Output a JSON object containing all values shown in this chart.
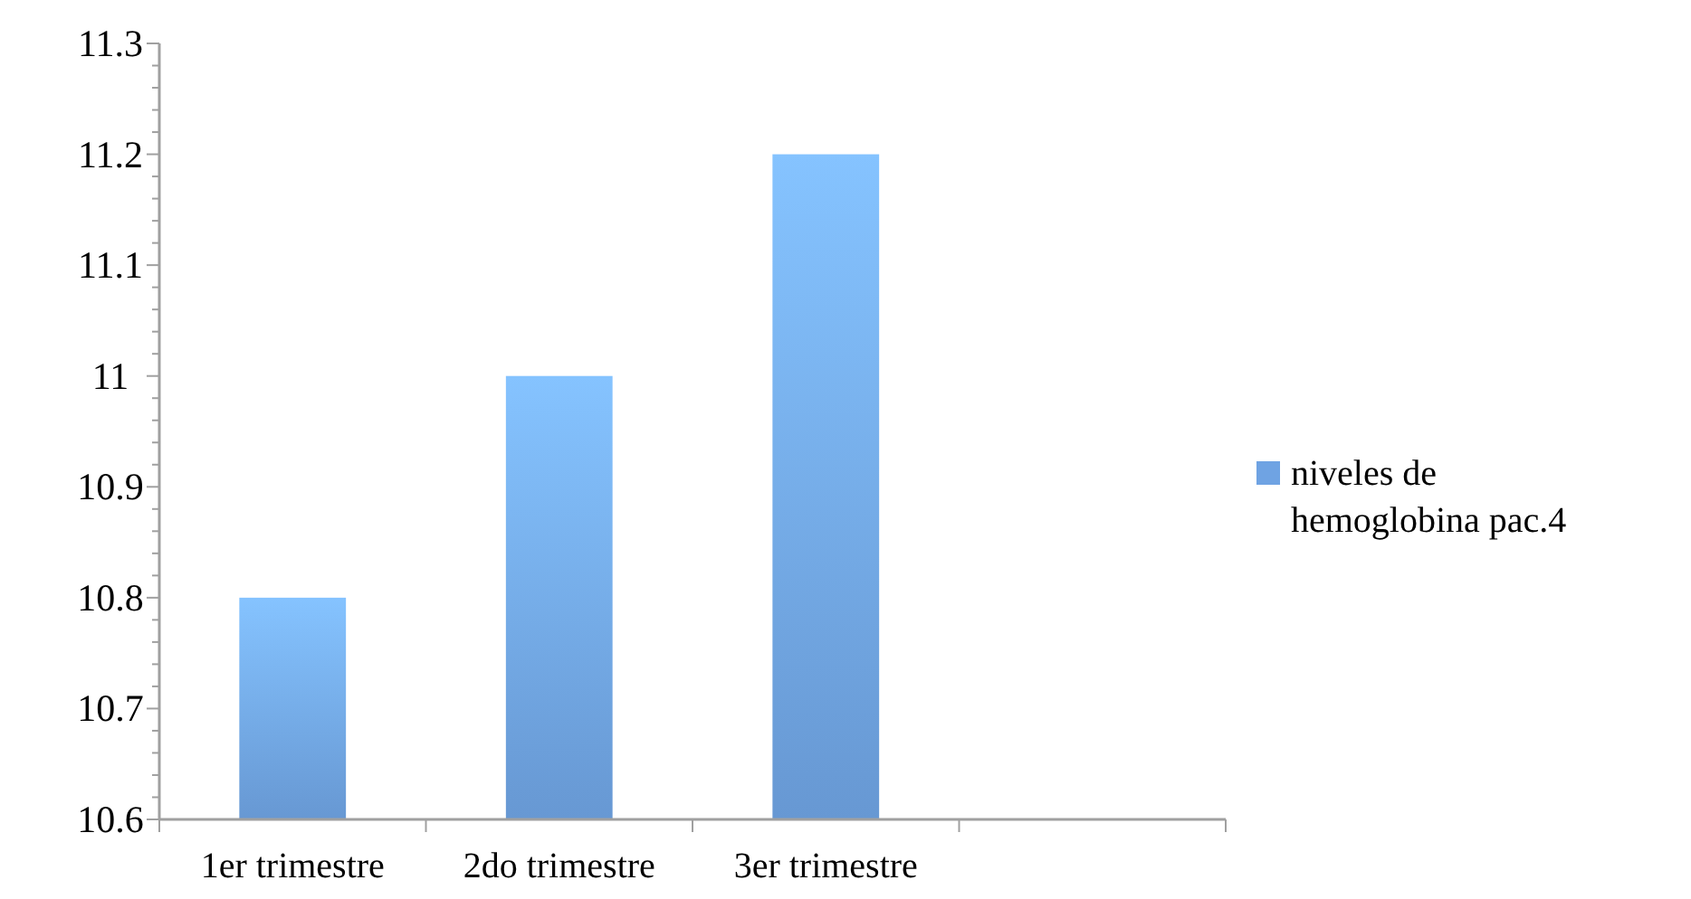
{
  "chart_data": {
    "type": "bar",
    "categories": [
      "1er trimestre",
      "2do trimestre",
      "3er trimestre",
      null
    ],
    "series": [
      {
        "name": "niveles de hemoglobina pac.4",
        "color": "#6fa3e3",
        "values": [
          10.8,
          11.0,
          11.2,
          null
        ]
      }
    ],
    "ylim": [
      10.6,
      11.3
    ],
    "yticks": [
      10.6,
      {
        "value": 10.62,
        "label": null
      },
      {
        "value": 10.64,
        "label": null
      },
      {
        "value": 10.66,
        "label": null
      },
      {
        "value": 10.68,
        "label": null
      },
      10.7,
      {
        "value": 10.72,
        "label": null
      },
      {
        "value": 10.74,
        "label": null
      },
      {
        "value": 10.76,
        "label": null
      },
      {
        "value": 10.78,
        "label": null
      },
      10.8,
      {
        "value": 10.82,
        "label": null
      },
      {
        "value": 10.84,
        "label": null
      },
      {
        "value": 10.86,
        "label": null
      },
      {
        "value": 10.88,
        "label": null
      },
      10.9,
      {
        "value": 10.92,
        "label": null
      },
      {
        "value": 10.94,
        "label": null
      },
      {
        "value": 10.96,
        "label": null
      },
      {
        "value": 10.98,
        "label": null
      },
      {
        "value": 11,
        "label": "11"
      },
      {
        "value": 11.02,
        "label": null
      },
      {
        "value": 11.04,
        "label": null
      },
      {
        "value": 11.06,
        "label": null
      },
      {
        "value": 11.08,
        "label": null
      },
      11.1,
      {
        "value": 11.12,
        "label": null
      },
      {
        "value": 11.14,
        "label": null
      },
      {
        "value": 11.16,
        "label": null
      },
      {
        "value": 11.18,
        "label": null
      },
      11.2,
      {
        "value": 11.22,
        "label": null
      },
      {
        "value": 11.24,
        "label": null
      },
      {
        "value": 11.26,
        "label": null
      },
      {
        "value": 11.28,
        "label": null
      },
      11.3
    ],
    "grid": false,
    "legend": "right"
  }
}
